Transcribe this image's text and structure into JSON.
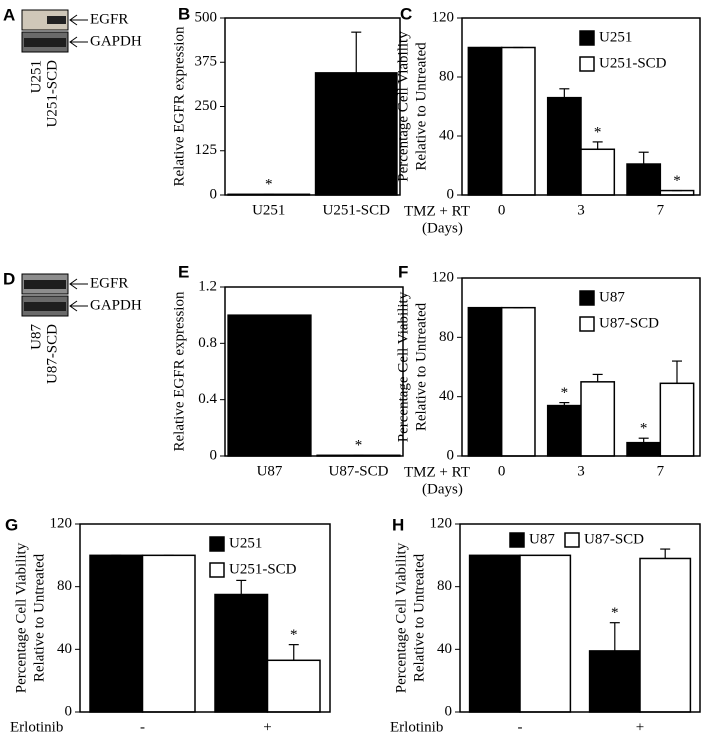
{
  "blots": [
    {
      "letter": "A",
      "bands": [
        "EGFR",
        "GAPDH"
      ],
      "lanes": [
        "U251",
        "U251-SCD"
      ]
    },
    {
      "letter": "D",
      "bands": [
        "EGFR",
        "GAPDH"
      ],
      "lanes": [
        "U87",
        "U87-SCD"
      ]
    }
  ],
  "chart_data": [
    {
      "type": "bar",
      "letter": "B",
      "ylabel": [
        "Relative EGFR expression"
      ],
      "categories": [
        "U251",
        "U251-SCD"
      ],
      "series": [
        {
          "name": "EGFR",
          "color": "#000000",
          "values": [
            2,
            345
          ],
          "errors": [
            0,
            115
          ]
        }
      ],
      "ylim": [
        0,
        500
      ],
      "yticks": [
        0,
        125,
        250,
        375,
        500
      ],
      "markers": [
        {
          "text": "*",
          "series": 0,
          "index": 0
        }
      ]
    },
    {
      "type": "bar",
      "letter": "C",
      "ylabel": [
        "Percentage Cell Viability",
        "Relative to Untreated"
      ],
      "xlabel": "TMZ + RT",
      "xlabel_note": "(Days)",
      "categories": [
        "0",
        "3",
        "7"
      ],
      "legend": "upper right",
      "series": [
        {
          "name": "U251",
          "color": "#000000",
          "values": [
            100,
            66,
            21
          ],
          "errors": [
            0,
            6,
            8
          ]
        },
        {
          "name": "U251-SCD",
          "color": "#ffffff",
          "values": [
            100,
            31,
            3
          ],
          "errors": [
            0,
            5,
            0
          ]
        }
      ],
      "ylim": [
        0,
        120
      ],
      "yticks": [
        0,
        40,
        80,
        120
      ],
      "markers": [
        {
          "text": "*",
          "series": 1,
          "index": 1
        },
        {
          "text": "*",
          "series": 1,
          "index": 2
        }
      ]
    },
    {
      "type": "bar",
      "letter": "E",
      "ylabel": [
        "Relative EGFR expression"
      ],
      "categories": [
        "U87",
        "U87-SCD"
      ],
      "series": [
        {
          "name": "EGFR",
          "color": "#000000",
          "values": [
            1,
            0.005
          ],
          "errors": [
            0,
            0
          ]
        }
      ],
      "ylim": [
        0,
        1.2
      ],
      "yticks": [
        0,
        0.4,
        0.8,
        1.2
      ],
      "markers": [
        {
          "text": "*",
          "series": 0,
          "index": 1
        }
      ]
    },
    {
      "type": "bar",
      "letter": "F",
      "ylabel": [
        "Percentage Cell Viability",
        "Relative to Untreated"
      ],
      "xlabel": "TMZ + RT",
      "xlabel_note": "(Days)",
      "categories": [
        "0",
        "3",
        "7"
      ],
      "legend": "upper right",
      "series": [
        {
          "name": "U87",
          "color": "#000000",
          "values": [
            100,
            34,
            9
          ],
          "errors": [
            0,
            2,
            3
          ]
        },
        {
          "name": "U87-SCD",
          "color": "#ffffff",
          "values": [
            100,
            50,
            49
          ],
          "errors": [
            0,
            5,
            15
          ]
        }
      ],
      "ylim": [
        0,
        120
      ],
      "yticks": [
        0,
        40,
        80,
        120
      ],
      "markers": [
        {
          "text": "*",
          "series": 0,
          "index": 1
        },
        {
          "text": "*",
          "series": 0,
          "index": 2
        }
      ]
    },
    {
      "type": "bar",
      "letter": "G",
      "ylabel": [
        "Percentage Cell Viability",
        "Relative to Untreated"
      ],
      "xlabel": "Erlotinib",
      "categories": [
        "-",
        "+"
      ],
      "legend": "upper right",
      "series": [
        {
          "name": "U251",
          "color": "#000000",
          "values": [
            100,
            75
          ],
          "errors": [
            0,
            9
          ]
        },
        {
          "name": "U251-SCD",
          "color": "#ffffff",
          "values": [
            100,
            33
          ],
          "errors": [
            0,
            10
          ]
        }
      ],
      "ylim": [
        0,
        120
      ],
      "yticks": [
        0,
        40,
        80,
        120
      ],
      "markers": [
        {
          "text": "*",
          "series": 1,
          "index": 1
        }
      ]
    },
    {
      "type": "bar",
      "letter": "H",
      "ylabel": [
        "Percentage Cell Viability",
        "Relative to Untreated"
      ],
      "xlabel": "Erlotinib",
      "categories": [
        "-",
        "+"
      ],
      "legend": "upper center",
      "series": [
        {
          "name": "U87",
          "color": "#000000",
          "values": [
            100,
            39
          ],
          "errors": [
            0,
            18
          ]
        },
        {
          "name": "U87-SCD",
          "color": "#ffffff",
          "values": [
            100,
            98
          ],
          "errors": [
            0,
            6
          ]
        }
      ],
      "ylim": [
        0,
        120
      ],
      "yticks": [
        0,
        40,
        80,
        120
      ],
      "markers": [
        {
          "text": "*",
          "series": 0,
          "index": 1
        }
      ]
    }
  ]
}
